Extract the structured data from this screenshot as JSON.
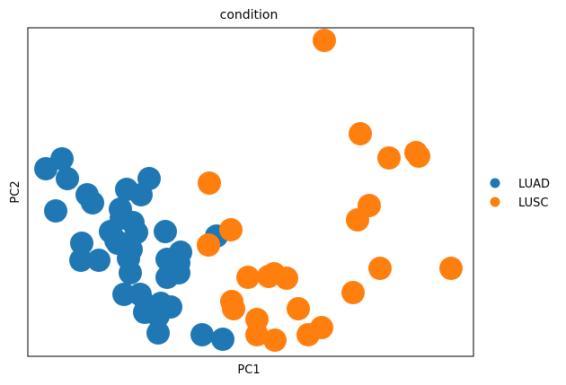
{
  "chart_data": {
    "type": "scatter",
    "title": "condition",
    "xlabel": "PC1",
    "ylabel": "PC2",
    "xlim": [
      0,
      496
    ],
    "ylim": [
      0,
      366
    ],
    "grid": false,
    "legend_position": "right",
    "series": [
      {
        "name": "LUAD",
        "color": "#1f77b4",
        "points": [
          [
            20,
            209
          ],
          [
            38,
            220
          ],
          [
            44,
            198
          ],
          [
            66,
            180
          ],
          [
            72,
            171
          ],
          [
            31,
            162
          ],
          [
            110,
            186
          ],
          [
            135,
            198
          ],
          [
            126,
            180
          ],
          [
            103,
            164
          ],
          [
            104,
            154
          ],
          [
            117,
            149
          ],
          [
            92,
            139
          ],
          [
            98,
            129
          ],
          [
            153,
            139
          ],
          [
            121,
            138
          ],
          [
            100,
            126
          ],
          [
            115,
            119
          ],
          [
            60,
            126
          ],
          [
            59,
            107
          ],
          [
            79,
            107
          ],
          [
            112,
            109
          ],
          [
            114,
            93
          ],
          [
            155,
            108
          ],
          [
            168,
            104
          ],
          [
            155,
            88
          ],
          [
            168,
            93
          ],
          [
            107,
            69
          ],
          [
            125,
            69
          ],
          [
            132,
            57
          ],
          [
            148,
            59
          ],
          [
            159,
            55
          ],
          [
            130,
            49
          ],
          [
            145,
            45
          ],
          [
            145,
            26
          ],
          [
            194,
            24
          ],
          [
            217,
            19
          ],
          [
            210,
            134
          ],
          [
            170,
            116
          ],
          [
            160,
            98
          ]
        ]
      },
      {
        "name": "LUSC",
        "color": "#ff7f0e",
        "points": [
          [
            330,
            352
          ],
          [
            370,
            248
          ],
          [
            402,
            221
          ],
          [
            432,
            227
          ],
          [
            435,
            223
          ],
          [
            202,
            193
          ],
          [
            380,
            168
          ],
          [
            367,
            152
          ],
          [
            226,
            141
          ],
          [
            201,
            124
          ],
          [
            392,
            98
          ],
          [
            471,
            98
          ],
          [
            245,
            88
          ],
          [
            268,
            89
          ],
          [
            274,
            92
          ],
          [
            288,
            87
          ],
          [
            362,
            71
          ],
          [
            227,
            61
          ],
          [
            229,
            53
          ],
          [
            255,
            41
          ],
          [
            301,
            53
          ],
          [
            327,
            32
          ],
          [
            255,
            24
          ],
          [
            275,
            18
          ],
          [
            312,
            24
          ]
        ]
      }
    ]
  },
  "legend": {
    "items": [
      {
        "label": "LUAD",
        "color": "#1f77b4"
      },
      {
        "label": "LUSC",
        "color": "#ff7f0e"
      }
    ]
  }
}
